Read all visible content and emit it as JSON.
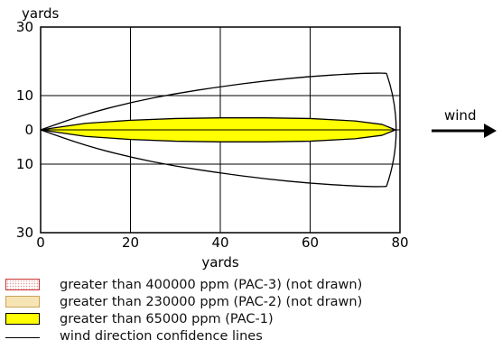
{
  "chart_data": {
    "type": "area",
    "x_unit": "yards",
    "y_unit": "yards",
    "xlim": [
      0,
      80
    ],
    "ylim": [
      -30,
      30
    ],
    "x_ticks": [
      "0",
      "20",
      "40",
      "60",
      "80"
    ],
    "y_ticks": [
      {
        "value": 30,
        "label": "30"
      },
      {
        "value": 10,
        "label": "10"
      },
      {
        "value": 0,
        "label": "0"
      },
      {
        "value": -10,
        "label": "10"
      },
      {
        "value": -30,
        "label": "30"
      }
    ],
    "grid": true,
    "wind_label": "wind",
    "pac1_zone": {
      "x": [
        0,
        10,
        20,
        30,
        40,
        50,
        60,
        70,
        76,
        79
      ],
      "half_width": [
        0,
        1.9,
        2.8,
        3.3,
        3.5,
        3.5,
        3.3,
        2.6,
        1.6,
        0
      ]
    },
    "confidence_lines": {
      "x": [
        0,
        10,
        20,
        30,
        40,
        50,
        60,
        70,
        75,
        77
      ],
      "half_width": [
        0,
        4.6,
        8.0,
        10.6,
        12.6,
        14.3,
        15.6,
        16.4,
        16.6,
        16.5
      ],
      "arc_x_center": 78.5
    }
  },
  "legend": [
    {
      "label": "greater than 400000 ppm (PAC-3) (not drawn)",
      "fill": "#ffffff",
      "border": "#cc3333",
      "pattern": "dots"
    },
    {
      "label": "greater than 230000 ppm (PAC-2) (not drawn)",
      "fill": "#f7e4b5",
      "border": "#c9a45a"
    },
    {
      "label": "greater than 65000 ppm (PAC-1)",
      "fill": "#ffff00",
      "border": "#000000"
    },
    {
      "label": "wind direction confidence lines"
    }
  ],
  "colors": {
    "pac1": "#ffff00",
    "grid": "#000000"
  }
}
